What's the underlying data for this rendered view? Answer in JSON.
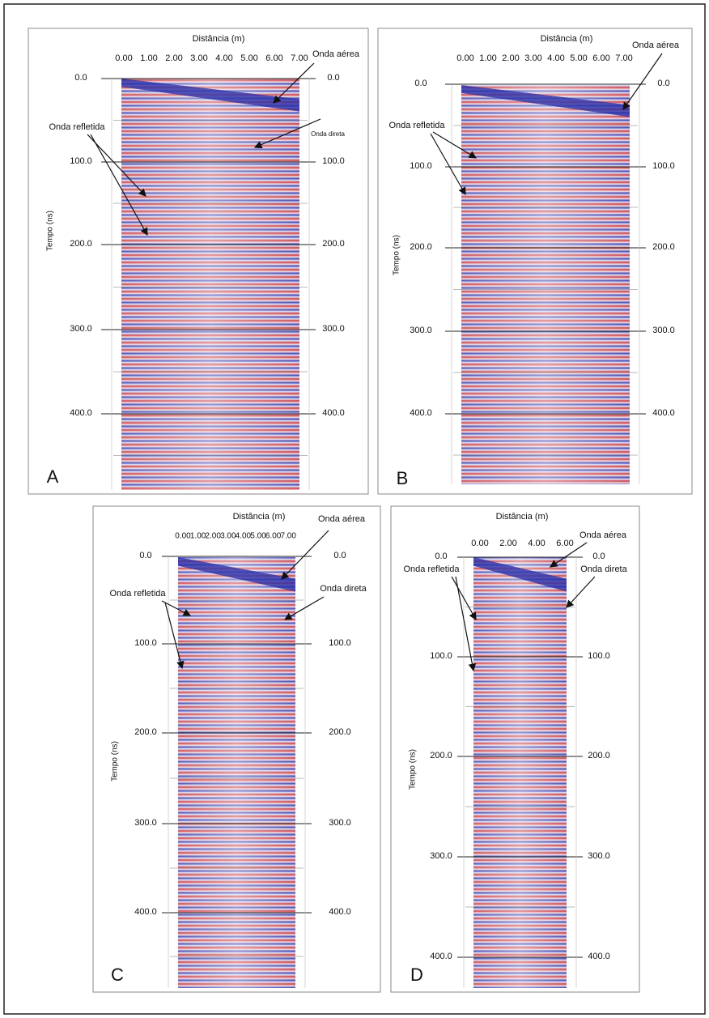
{
  "panels": [
    {
      "letter": "A",
      "x_title": "Distância (m)",
      "y_title": "Tempo (ns)",
      "x_ticks": [
        "0.00",
        "1.00",
        "2.00",
        "3.00",
        "4.00",
        "5.00",
        "6.00",
        "7.00"
      ],
      "y_ticks_left": [
        "0.0",
        "100.0",
        "200.0",
        "300.0",
        "400.0"
      ],
      "y_ticks_right": [
        "0.0",
        "100.0",
        "200.0",
        "300.0",
        "400.0"
      ],
      "annotations": [
        "Onda aérea",
        "Onda direta",
        "Onda refletida"
      ]
    },
    {
      "letter": "B",
      "x_title": "Distância (m)",
      "y_title": "Tempo (ns)",
      "x_ticks": [
        "0.00",
        "1.00",
        "2.00",
        "3.00",
        "4.00",
        "5.00",
        "6.00",
        "7.00"
      ],
      "y_ticks_left": [
        "0.0",
        "100.0",
        "200.0",
        "300.0",
        "400.0"
      ],
      "y_ticks_right": [
        "0.0",
        "100.0",
        "200.0",
        "300.0",
        "400.0"
      ],
      "annotations": [
        "Onda aérea",
        "Onda refletida"
      ]
    },
    {
      "letter": "C",
      "x_title": "Distância (m)",
      "y_title": "Tempo (ns)",
      "x_ticks": [
        "0.00",
        "1.00",
        "2.00",
        "3.00",
        "4.00",
        "5.00",
        "6.00",
        "7.00"
      ],
      "y_ticks_left": [
        "0.0",
        "100.0",
        "200.0",
        "300.0",
        "400.0"
      ],
      "y_ticks_right": [
        "0.0",
        "100.0",
        "200.0",
        "300.0",
        "400.0"
      ],
      "annotations": [
        "Onda aérea",
        "Onda direta",
        "Onda refletida"
      ]
    },
    {
      "letter": "D",
      "x_title": "Distância (m)",
      "y_title": "Tempo (ns)",
      "x_ticks": [
        "0.00",
        "2.00",
        "4.00",
        "6.00"
      ],
      "y_ticks_left": [
        "0.0",
        "100.0",
        "200.0",
        "300.0",
        "400.0"
      ],
      "y_ticks_right": [
        "0.0",
        "100.0",
        "200.0",
        "300.0",
        "400.0"
      ],
      "annotations": [
        "Onda aérea",
        "Onda direta",
        "Onda refletida"
      ]
    }
  ]
}
